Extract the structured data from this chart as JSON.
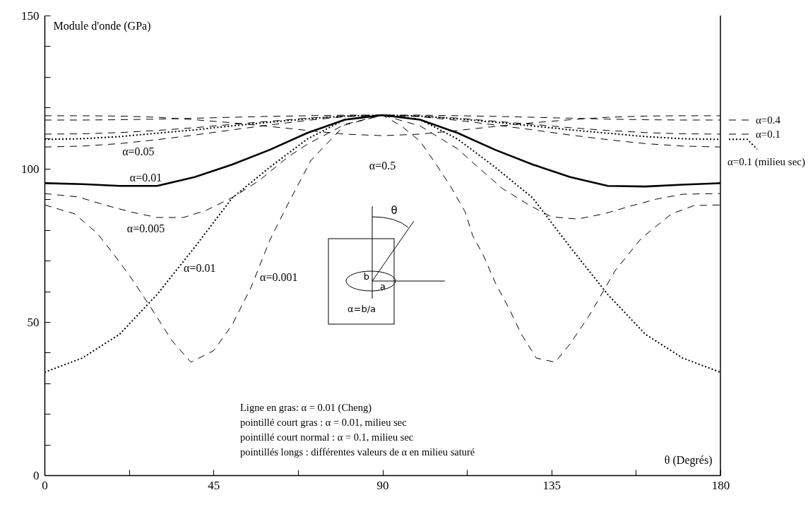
{
  "chart_data": {
    "type": "line",
    "legend": "right",
    "xlabel": "θ (Degrés)",
    "ylabel": "Module d'onde (GPa)",
    "x": [
      0,
      10,
      20,
      30,
      40,
      50,
      60,
      70,
      80,
      90,
      100,
      110,
      120,
      130,
      140,
      150,
      160,
      170,
      180
    ],
    "xlim": [
      0,
      180
    ],
    "xticks": [
      0,
      {
        "value": 22.5,
        "label": null
      },
      45,
      {
        "value": 67.5,
        "label": null
      },
      90,
      {
        "value": 112.5,
        "label": null
      },
      135,
      {
        "value": 157.5,
        "label": null
      },
      180
    ],
    "ylim": [
      0,
      150
    ],
    "yticks": [
      0,
      {
        "value": 10,
        "label": null
      },
      {
        "value": 20,
        "label": null
      },
      {
        "value": 30,
        "label": null
      },
      {
        "value": 40,
        "label": null
      },
      50,
      {
        "value": 60,
        "label": null
      },
      {
        "value": 70,
        "label": null
      },
      {
        "value": 80,
        "label": null
      },
      {
        "value": 90,
        "label": null
      },
      100,
      {
        "value": 110,
        "label": null
      },
      {
        "value": 120,
        "label": null
      },
      {
        "value": 130,
        "label": null
      },
      {
        "value": 140,
        "label": null
      },
      150
    ],
    "series": [
      {
        "color": "#000000",
        "line_style": "solid",
        "values": [
          95.3,
          95.0,
          94.4,
          94.4,
          97.3,
          101.4,
          106.2,
          111.7,
          116.0,
          117.5,
          116.0,
          111.7,
          106.2,
          101.4,
          97.3,
          94.4,
          94.2,
          94.8,
          95.3
        ]
      },
      {
        "color": "#000000",
        "line_style": "dotted",
        "values": [
          33.6,
          38.2,
          46,
          59,
          74.4,
          90.5,
          100.5,
          109.7,
          116.1,
          117.5,
          116.1,
          109.7,
          100.5,
          90.5,
          74.4,
          59,
          46,
          38.2,
          33.6
        ]
      },
      {
        "name": "α=0.1 (milieu sec)",
        "color": "#000000",
        "line_style": "dotted",
        "values": [
          109.6,
          109.8,
          110.5,
          111.6,
          112.7,
          114,
          115.2,
          116.3,
          117.2,
          117.5,
          117.2,
          116.3,
          115.2,
          114,
          112.7,
          111.6,
          110.5,
          109.8,
          109.6
        ]
      },
      {
        "color": "#000000",
        "line_style": "dashed",
        "values": [
          117.3,
          117.3,
          117.2,
          116.8,
          116,
          115,
          113.8,
          112.5,
          111.3,
          110.8,
          111.3,
          112.5,
          113.8,
          115,
          116,
          116.8,
          117.2,
          117.3,
          117.3
        ]
      },
      {
        "name": "α=0.4",
        "color": "#000000",
        "line_style": "dashed",
        "values": [
          115.9,
          115.9,
          116,
          116.2,
          116.5,
          116.8,
          117.1,
          117.3,
          117.5,
          117.5,
          117.5,
          117.3,
          117.1,
          116.8,
          116.5,
          116.2,
          116,
          115.9,
          115.9
        ]
      },
      {
        "name": "α=0.1",
        "color": "#000000",
        "line_style": "dashed",
        "values": [
          111.3,
          111.4,
          111.8,
          112.5,
          113.4,
          114.5,
          115.5,
          116.5,
          117.2,
          117.5,
          117.2,
          116.5,
          115.5,
          114.5,
          113.4,
          112.5,
          111.8,
          111.4,
          111.3
        ]
      },
      {
        "color": "#000000",
        "line_style": "dashed",
        "values": [
          107.1,
          107.4,
          108.2,
          109.5,
          111,
          112.7,
          114.3,
          115.8,
          117,
          117.5,
          117,
          115.8,
          114.3,
          112.7,
          111,
          109.5,
          108.2,
          107.4,
          107.1
        ]
      },
      {
        "color": "#000000",
        "line_style": "dashed",
        "x": [
          0,
          9,
          16,
          23,
          30,
          37,
          43,
          50,
          57,
          65,
          70,
          80,
          90,
          100,
          110,
          115,
          122,
          129,
          135,
          142,
          149,
          156,
          163,
          170,
          180
        ],
        "values": [
          91.9,
          90.8,
          88.2,
          85.9,
          84.1,
          84.1,
          86.4,
          90.6,
          96,
          104,
          108,
          114.5,
          117.5,
          114,
          106.5,
          101,
          93.5,
          88.2,
          84.3,
          83.6,
          85.3,
          87.8,
          90.1,
          91.7,
          91.9
        ]
      },
      {
        "color": "#000000",
        "line_style": "dashed",
        "x": [
          0,
          8,
          14,
          18,
          23,
          28,
          34,
          39,
          45,
          50,
          55,
          60,
          65,
          71,
          80,
          90,
          95,
          100,
          104,
          108,
          112,
          114,
          117,
          120,
          124,
          127,
          131,
          136,
          140,
          145,
          152,
          159,
          167,
          173,
          180
        ],
        "values": [
          88.2,
          85.3,
          79,
          72.8,
          64.5,
          55.3,
          43.8,
          36.9,
          40.6,
          49.1,
          61.3,
          76.7,
          88.9,
          102.8,
          114.3,
          117.5,
          114,
          109,
          102,
          94.5,
          86,
          78.3,
          71.4,
          62.9,
          53.7,
          46,
          38.2,
          36.9,
          42.9,
          52,
          66.8,
          77.4,
          85.3,
          88,
          88.2
        ]
      }
    ],
    "annotations": [
      {
        "text": "α=0.05",
        "x": 25,
        "y": 108.8
      },
      {
        "text": "α=0.01",
        "x": 27,
        "y": 94.4
      },
      {
        "text": "α=0.5",
        "x": 90,
        "y": 110.8
      },
      {
        "text": "α=0.005",
        "x": 27,
        "y": 84.9
      },
      {
        "text": "α=0.01",
        "x": 35.5,
        "y": 67.5
      },
      {
        "text": "α=0.001",
        "x": 56,
        "y": 64.5
      },
      "Ligne en gras: α = 0.01 (Cheng)",
      "pointillé court gras : α = 0.01, milieu sec",
      "pointillé court normal : α = 0.1, milieu sec",
      "pointillés longs : différentes valeurs de α en milieu saturé",
      "θ",
      "b",
      "a",
      "α=b/a"
    ]
  }
}
